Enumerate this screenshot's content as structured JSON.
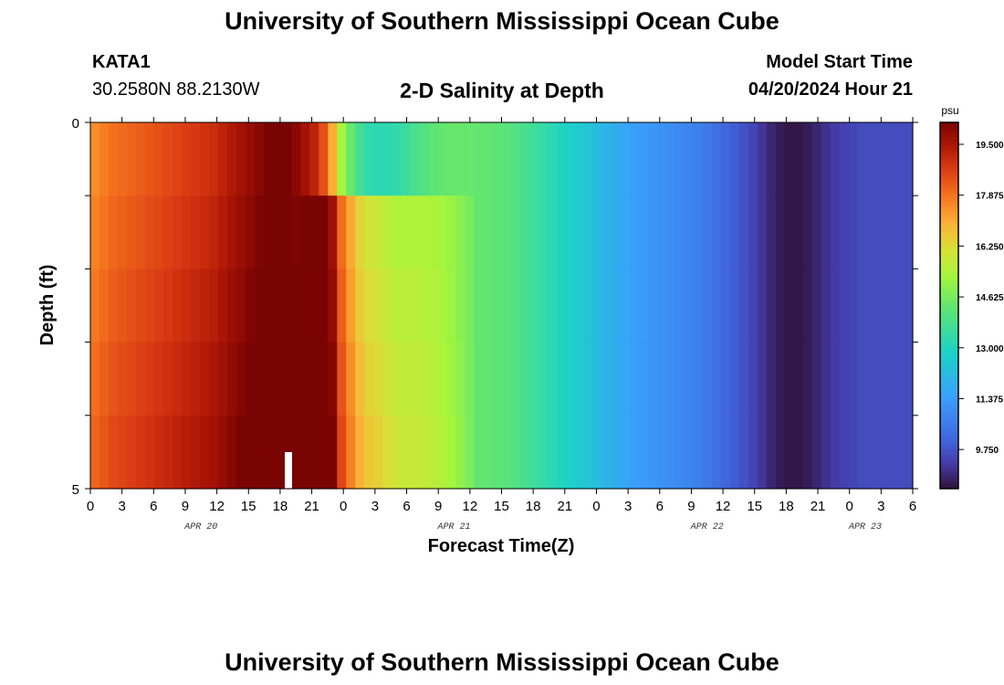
{
  "chart_data": {
    "type": "heatmap",
    "title": "University of Southern Mississippi Ocean Cube",
    "station": "KATA1",
    "location": "30.2580N  88.2130W",
    "subtitle": "2-D Salinity at Depth",
    "model_start_label": "Model Start Time",
    "model_start_value": "04/20/2024 Hour 21",
    "xlabel": "Forecast Time(Z)",
    "ylabel": "Depth (ft)",
    "x_ticks": [
      "0",
      "3",
      "6",
      "9",
      "12",
      "15",
      "18",
      "21",
      "0",
      "3",
      "6",
      "9",
      "12",
      "15",
      "18",
      "21",
      "0",
      "3",
      "6",
      "9",
      "12",
      "15",
      "18",
      "21",
      "0",
      "3",
      "6"
    ],
    "day_labels": [
      {
        "label": "APR 20",
        "at_tick": 3.5
      },
      {
        "label": "APR 21",
        "at_tick": 11.5
      },
      {
        "label": "APR 22",
        "at_tick": 19.5
      },
      {
        "label": "APR 23",
        "at_tick": 24.5
      }
    ],
    "y_ticks": [
      "0",
      "5"
    ],
    "ylim": [
      0,
      5
    ],
    "colorbar": {
      "unit": "psu",
      "min": 8.5,
      "max": 20.2,
      "tick_labels": [
        "19.500",
        "17.875",
        "16.250",
        "14.625",
        "13.000",
        "11.375",
        "9.750"
      ],
      "tick_values": [
        19.5,
        17.875,
        16.25,
        14.625,
        13.0,
        11.375,
        9.75
      ]
    },
    "surface_profile": [
      17.5,
      17.7,
      17.9,
      18.0,
      18.1,
      18.2,
      18.3,
      18.4,
      18.5,
      18.6,
      18.7,
      18.8,
      18.9,
      19.0,
      19.2,
      19.4,
      19.6,
      19.8,
      20.0,
      20.2,
      20.2,
      20.2,
      20.0,
      19.6,
      19.2,
      18.4,
      17.0,
      15.3,
      14.4,
      13.7,
      13.3,
      13.2,
      13.2,
      13.3,
      13.5,
      13.8,
      14.0,
      14.2,
      14.3,
      14.4,
      14.4,
      14.4,
      14.3,
      14.3,
      14.2,
      14.1,
      14.0,
      13.8,
      13.6,
      13.4,
      13.2,
      13.0,
      12.8,
      12.6,
      12.4,
      12.2,
      12.0,
      11.8,
      11.6,
      11.4,
      11.3,
      11.2,
      11.1,
      11.0,
      10.9,
      10.8,
      10.7,
      10.5,
      10.3,
      10.1,
      9.9,
      9.7,
      9.5,
      9.2,
      8.9,
      8.7,
      8.6,
      8.6,
      8.7,
      8.9,
      9.1,
      9.3,
      9.4,
      9.5,
      9.6,
      9.6,
      9.6,
      9.6,
      9.6,
      9.6
    ],
    "gap_marker_label": ""
  }
}
